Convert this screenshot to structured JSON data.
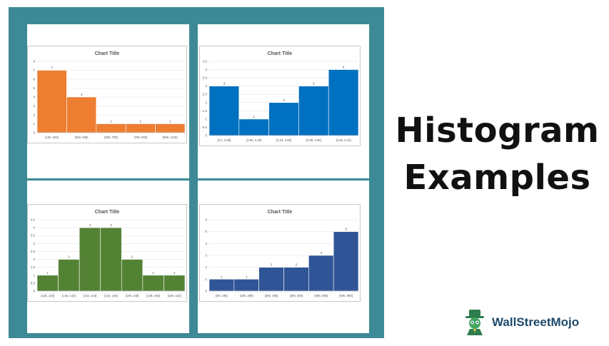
{
  "heading": {
    "line1": "Histogram",
    "line2": "Examples"
  },
  "brand": {
    "name": "WallStreetMojo"
  },
  "chart_data": [
    {
      "type": "bar",
      "title": "Chart Title",
      "color": "#ed7d31",
      "categories": [
        "[100, 300]",
        "[300, 500]",
        "[500, 700]",
        "[700, 900]",
        "[900, 1100]"
      ],
      "values": [
        7,
        4,
        1,
        1,
        1
      ],
      "ylim": [
        0,
        8
      ],
      "yticks": [
        "0",
        "1",
        "2",
        "3",
        "4",
        "5",
        "6",
        "7",
        "8"
      ]
    },
    {
      "type": "bar",
      "title": "Chart Title",
      "color": "#0070c0",
      "categories": [
        "[2.2, 2.86]",
        "[2.86, 3.43]",
        "[3.43, 3.99]",
        "[3.99, 4.56]",
        "[4.56, 5.12]"
      ],
      "values": [
        3,
        1,
        2,
        3,
        4
      ],
      "ylim": [
        0,
        4.5
      ],
      "yticks": [
        "0",
        "0.5",
        "1",
        "1.5",
        "2",
        "2.5",
        "3",
        "3.5",
        "4",
        "4.5"
      ]
    },
    {
      "type": "bar",
      "title": "Chart Title",
      "color": "#548235",
      "categories": [
        "[138, 140]",
        "[140, 142]",
        "[142, 144]",
        "[144, 146]",
        "[146, 148]",
        "[148, 150]",
        "[150, 152]"
      ],
      "values": [
        1,
        2,
        4,
        4,
        2,
        1,
        1
      ],
      "ylim": [
        0,
        4.5
      ],
      "yticks": [
        "0",
        "0.5",
        "1",
        "1.5",
        "2",
        "2.5",
        "3",
        "3.5",
        "4",
        "4.5"
      ]
    },
    {
      "type": "bar",
      "title": "Chart Title",
      "color": "#2f5597",
      "categories": [
        "[80, 190]",
        "[190, 290]",
        "[290, 390]",
        "[390, 490]",
        "[490, 590]",
        "[590, 690]"
      ],
      "values": [
        1,
        1,
        2,
        2,
        3,
        5
      ],
      "ylim": [
        0,
        6
      ],
      "yticks": [
        "0",
        "1",
        "2",
        "3",
        "4",
        "5",
        "6"
      ]
    }
  ]
}
